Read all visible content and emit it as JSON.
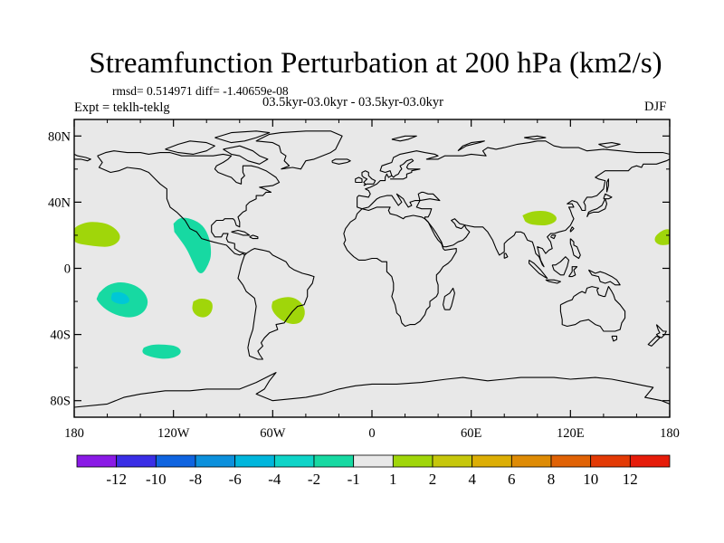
{
  "figure": {
    "title": "Streamfunction Perturbation at 200 hPa (km2/s)",
    "stats": "rmsd= 0.514971 diff= -1.40659e-08",
    "experiment": "Expt = teklh-teklg",
    "period": "03.5kyr-03.0kyr - 03.5kyr-03.0kyr",
    "season": "DJF"
  },
  "map": {
    "background": "#e8e8e8",
    "lon_range": [
      -180,
      180
    ],
    "lat_range": [
      -90,
      90
    ],
    "lat_ticks": [
      {
        "value": 80,
        "label": "80N"
      },
      {
        "value": 40,
        "label": "40N"
      },
      {
        "value": 0,
        "label": "0"
      },
      {
        "value": -40,
        "label": "40S"
      },
      {
        "value": -80,
        "label": "80S"
      }
    ],
    "lon_ticks": [
      {
        "value": -180,
        "label": "180"
      },
      {
        "value": -120,
        "label": "120W"
      },
      {
        "value": -60,
        "label": "60W"
      },
      {
        "value": 0,
        "label": "0"
      },
      {
        "value": 60,
        "label": "60E"
      },
      {
        "value": 120,
        "label": "120E"
      },
      {
        "value": 180,
        "label": "180"
      }
    ],
    "anomalies": [
      {
        "name": "north-pacific-east",
        "category": "1 to 2",
        "color": "#a0d60a",
        "lon": [
          -181,
          -178,
          -172,
          -166,
          -160,
          -155,
          -152,
          -153,
          -158,
          -165,
          -172,
          -178,
          -181
        ],
        "lat": [
          23,
          26,
          28,
          28,
          27,
          24,
          20,
          16,
          13,
          13,
          14,
          15,
          17
        ]
      },
      {
        "name": "north-pacific-west",
        "category": "1 to 2",
        "color": "#a0d60a",
        "lon": [
          181,
          178,
          174,
          171,
          171,
          174,
          178,
          181
        ],
        "lat": [
          23,
          24,
          22,
          19,
          16,
          14,
          14,
          15
        ]
      },
      {
        "name": "central-america-pacific",
        "category": "-2 to -1",
        "color": "#17d9a2",
        "lon": [
          -120,
          -116,
          -109,
          -102,
          -98,
          -97,
          -99,
          -102,
          -105,
          -108,
          -112,
          -118,
          -121
        ],
        "lat": [
          27,
          31,
          30,
          26,
          18,
          8,
          2,
          -3,
          -3,
          3,
          12,
          20,
          24
        ]
      },
      {
        "name": "south-pacific-tropical",
        "category": "-2 to -1",
        "color": "#17d9a2",
        "lon": [
          -165,
          -160,
          -152,
          -143,
          -137,
          -135,
          -138,
          -145,
          -153,
          -161,
          -166,
          -167
        ],
        "lat": [
          -15,
          -10,
          -8,
          -10,
          -15,
          -21,
          -27,
          -30,
          -29,
          -25,
          -20,
          -17
        ]
      },
      {
        "name": "south-pacific-core",
        "category": "-4 to -2",
        "color": "#00c7d6",
        "lon": [
          -157,
          -153,
          -148,
          -146,
          -150,
          -155,
          -158,
          -157
        ],
        "lat": [
          -15,
          -14,
          -16,
          -20,
          -22,
          -21,
          -19,
          -15
        ]
      },
      {
        "name": "south-pacific-east",
        "category": "1 to 2",
        "color": "#a0d60a",
        "lon": [
          -108,
          -104,
          -98,
          -96,
          -97,
          -101,
          -106,
          -109,
          -108
        ],
        "lat": [
          -20,
          -18,
          -19,
          -22,
          -27,
          -30,
          -29,
          -25,
          -20
        ]
      },
      {
        "name": "south-atlantic",
        "category": "1 to 2",
        "color": "#a0d60a",
        "lon": [
          -60,
          -56,
          -49,
          -43,
          -40,
          -42,
          -46,
          -52,
          -58,
          -61,
          -60
        ],
        "lat": [
          -20,
          -18,
          -17,
          -20,
          -26,
          -32,
          -34,
          -33,
          -29,
          -24,
          -20
        ]
      },
      {
        "name": "southern-ocean-pacific",
        "category": "-2 to -1",
        "color": "#17d9a2",
        "lon": [
          -138,
          -133,
          -125,
          -118,
          -115,
          -117,
          -124,
          -132,
          -138,
          -139,
          -138
        ],
        "lat": [
          -48,
          -46,
          -46,
          -47,
          -50,
          -53,
          -55,
          -54,
          -52,
          -50,
          -48
        ]
      },
      {
        "name": "china",
        "category": "1 to 2",
        "color": "#a0d60a",
        "lon": [
          91,
          95,
          102,
          108,
          112,
          111,
          106,
          100,
          94,
          91
        ],
        "lat": [
          32,
          34,
          35,
          34,
          31,
          28,
          26,
          26,
          27,
          30
        ]
      }
    ]
  },
  "colorbar": {
    "colors": [
      "#8a1ae6",
      "#3a2ee6",
      "#0f64e0",
      "#0c90dc",
      "#00b6dc",
      "#0fd4c8",
      "#17d9a2",
      "#e8e8e8",
      "#a0d60a",
      "#c6c70c",
      "#dcae05",
      "#de8b05",
      "#e06205",
      "#e33a05",
      "#e61c0a"
    ],
    "labels": [
      "-12",
      "-10",
      "-8",
      "-6",
      "-4",
      "-2",
      "-1",
      "1",
      "2",
      "4",
      "6",
      "8",
      "10",
      "12"
    ]
  }
}
